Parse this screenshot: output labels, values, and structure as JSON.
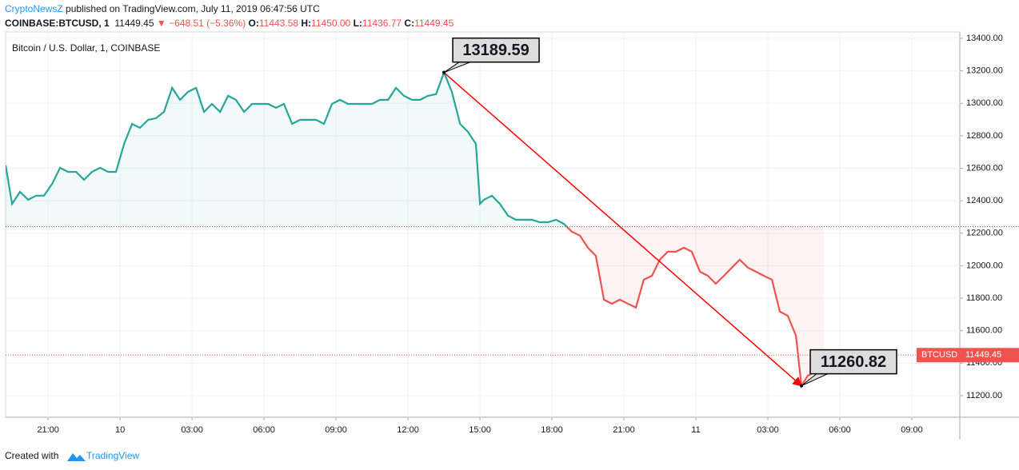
{
  "header": {
    "author": "CryptoNewsZ",
    "published": "published on TradingView.com, July 11, 2019 06:47:56 UTC",
    "symbol": "COINBASE:BTCUSD, 1",
    "last": "11449.45",
    "direction": "▼",
    "change": "−648.51 (−5.36%)",
    "ohlc": [
      {
        "label": "O:",
        "value": "11443.58"
      },
      {
        "label": "H:",
        "value": "11450.00"
      },
      {
        "label": "L:",
        "value": "11436.77"
      },
      {
        "label": "C:",
        "value": "11449.45"
      }
    ]
  },
  "footer": {
    "created": "Created with",
    "brand": "TradingView"
  },
  "chart_data": {
    "type": "line",
    "legend": "Bitcoin / U.S. Dollar, 1, COINBASE",
    "xlim": [
      -4.77,
      35
    ],
    "ylim": [
      11067,
      13439
    ],
    "xticks": [
      {
        "value": -3,
        "label": "21:00"
      },
      {
        "value": 0,
        "label": "10"
      },
      {
        "value": 3,
        "label": "03:00"
      },
      {
        "value": 6,
        "label": "06:00"
      },
      {
        "value": 9,
        "label": "09:00"
      },
      {
        "value": 12,
        "label": "12:00"
      },
      {
        "value": 15,
        "label": "15:00"
      },
      {
        "value": 18,
        "label": "18:00"
      },
      {
        "value": 21,
        "label": "21:00"
      },
      {
        "value": 24,
        "label": "11"
      },
      {
        "value": 27,
        "label": "03:00"
      },
      {
        "value": 30,
        "label": "06:00"
      },
      {
        "value": 33,
        "label": "09:00"
      }
    ],
    "yticks": [
      {
        "value": 11200,
        "label": "11200.00"
      },
      {
        "value": 11400,
        "label": "11400.00"
      },
      {
        "value": 11600,
        "label": "11600.00"
      },
      {
        "value": 11800,
        "label": "11800.00"
      },
      {
        "value": 12000,
        "label": "12000.00"
      },
      {
        "value": 12200,
        "label": "12200.00"
      },
      {
        "value": 12400,
        "label": "12400.00"
      },
      {
        "value": 12600,
        "label": "12600.00"
      },
      {
        "value": 12800,
        "label": "12800.00"
      },
      {
        "value": 13000,
        "label": "13000.00"
      },
      {
        "value": 13200,
        "label": "13200.00"
      },
      {
        "value": 13400,
        "label": "13400.00"
      }
    ],
    "grid": true,
    "baseline": 12240,
    "last_price": 11449.45,
    "series": [
      {
        "name": "BTCUSD",
        "color": "#26a69a",
        "color_below": "#ef5350",
        "x": [
          -4.77,
          -4.5,
          -4.17,
          -3.83,
          -3.5,
          -3.17,
          -2.83,
          -2.5,
          -2.17,
          -1.83,
          -1.5,
          -1.17,
          -0.83,
          -0.5,
          -0.17,
          0.17,
          0.5,
          0.83,
          1.17,
          1.5,
          1.83,
          2.17,
          2.5,
          2.83,
          3.17,
          3.5,
          3.83,
          4.17,
          4.5,
          4.83,
          5.17,
          5.5,
          5.83,
          6.17,
          6.5,
          6.83,
          7.17,
          7.5,
          7.83,
          8.17,
          8.5,
          8.83,
          9.17,
          9.5,
          9.83,
          10.17,
          10.5,
          10.83,
          11.17,
          11.5,
          11.83,
          12.17,
          12.5,
          12.83,
          13.17,
          13.5,
          13.83,
          14.17,
          14.5,
          14.83,
          15,
          15.17,
          15.5,
          15.83,
          16.17,
          16.5,
          16.83,
          17.17,
          17.5,
          17.83,
          18.17,
          18.5,
          18.83,
          19.17,
          19.5,
          19.83,
          20.17,
          20.5,
          20.83,
          21.17,
          21.5,
          21.83,
          22.17,
          22.5,
          22.83,
          23.17,
          23.5,
          23.83,
          24.17,
          24.5,
          24.83,
          25.17,
          25.5,
          25.83,
          26.17,
          26.5,
          26.83,
          27.17,
          27.5,
          27.83,
          28.17,
          28.4,
          28.67,
          29,
          29.33
        ],
        "values": [
          12618,
          12381,
          12455,
          12406,
          12431,
          12431,
          12504,
          12603,
          12578,
          12578,
          12529,
          12578,
          12603,
          12578,
          12578,
          12750,
          12873,
          12849,
          12898,
          12908,
          12947,
          13095,
          13021,
          13070,
          13095,
          12947,
          12996,
          12947,
          13046,
          13021,
          12947,
          12996,
          12996,
          12996,
          12972,
          12996,
          12873,
          12898,
          12898,
          12898,
          12873,
          12996,
          13021,
          12996,
          12996,
          12996,
          12996,
          13021,
          13021,
          13095,
          13046,
          13021,
          13021,
          13046,
          13056,
          13189.59,
          13070,
          12873,
          12824,
          12750,
          12381,
          12406,
          12431,
          12381,
          12308,
          12283,
          12283,
          12283,
          12268,
          12268,
          12283,
          12258,
          12209,
          12185,
          12111,
          12061,
          11791,
          11766,
          11791,
          11766,
          11742,
          11914,
          11938,
          12037,
          12086,
          12086,
          12111,
          12086,
          11963,
          11938,
          11889,
          11938,
          11988,
          12037,
          11988,
          11963,
          11938,
          11914,
          11717,
          11692,
          11569,
          11260.82,
          11323,
          11348,
          11449.45
        ]
      }
    ],
    "annotations": [
      {
        "x": 13.5,
        "value": 13189.59
      },
      {
        "x": 28.4,
        "value": 11260.82
      }
    ]
  }
}
